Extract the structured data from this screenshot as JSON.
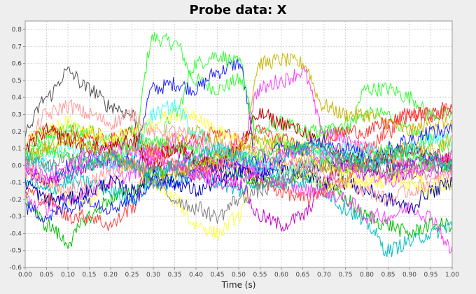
{
  "chart_data": {
    "type": "line",
    "title": "Probe data: X",
    "xlabel": "Time (s)",
    "ylabel": "",
    "xlim": [
      0,
      1
    ],
    "ylim": [
      -0.6,
      0.85
    ],
    "x_ticks": [
      "0.00",
      "0.05",
      "0.10",
      "0.15",
      "0.20",
      "0.25",
      "0.30",
      "0.35",
      "0.40",
      "0.45",
      "0.50",
      "0.55",
      "0.60",
      "0.65",
      "0.70",
      "0.75",
      "0.80",
      "0.85",
      "0.90",
      "0.95",
      "1.00"
    ],
    "y_ticks": [
      "0.8",
      "0.7",
      "0.6",
      "0.5",
      "0.4",
      "0.3",
      "0.2",
      "0.1",
      "0.0",
      "-0.1",
      "-0.2",
      "-0.3",
      "-0.4",
      "-0.5",
      "-0.6"
    ],
    "grid": true,
    "legend": "none",
    "x": [
      0,
      0.05,
      0.1,
      0.15,
      0.2,
      0.25,
      0.3,
      0.35,
      0.4,
      0.45,
      0.5,
      0.55,
      0.6,
      0.65,
      0.7,
      0.75,
      0.8,
      0.85,
      0.9,
      0.95,
      1.0
    ],
    "series": [
      {
        "color": "#32ff32",
        "values": [
          0.05,
          0.15,
          0.22,
          0.2,
          0.15,
          0.1,
          0.75,
          0.72,
          0.5,
          0.45,
          0.5,
          0.2,
          0.25,
          0.2,
          0.2,
          0.25,
          0.3,
          0.3,
          0.2,
          0.15,
          0.1
        ]
      },
      {
        "color": "#2020ff",
        "values": [
          0.0,
          -0.1,
          0.0,
          0.05,
          0.0,
          0.05,
          0.45,
          0.48,
          0.45,
          0.55,
          0.6,
          -0.05,
          0.0,
          -0.05,
          0.0,
          0.0,
          0.05,
          0.0,
          0.0,
          0.05,
          0.0
        ]
      },
      {
        "color": "#32ff32",
        "values": [
          0.1,
          0.2,
          0.2,
          0.15,
          0.1,
          0.2,
          0.1,
          0.3,
          0.6,
          0.65,
          0.6,
          0.1,
          0.15,
          0.1,
          0.2,
          0.2,
          0.45,
          0.45,
          0.4,
          0.3,
          0.3
        ]
      },
      {
        "color": "#c8b400",
        "values": [
          0.0,
          0.1,
          0.15,
          0.2,
          0.15,
          0.1,
          0.1,
          0.15,
          0.2,
          0.15,
          0.0,
          0.6,
          0.62,
          0.6,
          0.35,
          0.3,
          0.3,
          0.25,
          0.2,
          0.25,
          0.25
        ]
      },
      {
        "color": "#ff3cff",
        "values": [
          -0.05,
          -0.1,
          -0.05,
          0.0,
          0.0,
          0.0,
          0.1,
          0.15,
          0.1,
          0.05,
          0.1,
          0.45,
          0.5,
          0.55,
          0.2,
          0.15,
          0.1,
          0.05,
          0.0,
          -0.05,
          -0.05
        ]
      },
      {
        "color": "#505050",
        "values": [
          0.2,
          0.4,
          0.55,
          0.45,
          0.35,
          0.3,
          -0.1,
          -0.05,
          0.0,
          0.05,
          0.0,
          -0.1,
          -0.05,
          0.0,
          0.0,
          0.05,
          -0.05,
          0.0,
          -0.05,
          0.0,
          0.0
        ]
      },
      {
        "color": "#ff9a9a",
        "values": [
          0.1,
          0.3,
          0.35,
          0.3,
          0.25,
          0.3,
          0.2,
          0.2,
          0.15,
          0.1,
          0.1,
          0.05,
          0.0,
          0.0,
          0.05,
          0.1,
          0.1,
          0.05,
          0.0,
          0.0,
          0.05
        ]
      },
      {
        "color": "#ffff40",
        "values": [
          0.0,
          -0.1,
          -0.2,
          -0.2,
          -0.1,
          0.0,
          -0.1,
          -0.2,
          -0.35,
          -0.4,
          -0.3,
          0.1,
          0.15,
          0.1,
          0.0,
          -0.05,
          -0.1,
          -0.05,
          -0.1,
          -0.15,
          -0.1
        ]
      },
      {
        "color": "#c800c8",
        "values": [
          -0.05,
          -0.1,
          -0.05,
          0.0,
          0.05,
          0.0,
          0.05,
          0.1,
          0.0,
          -0.05,
          -0.1,
          -0.3,
          -0.35,
          -0.3,
          -0.1,
          0.0,
          0.0,
          -0.05,
          0.0,
          0.05,
          0.0
        ]
      },
      {
        "color": "#00c000",
        "values": [
          -0.2,
          -0.35,
          -0.45,
          -0.3,
          -0.2,
          -0.15,
          -0.05,
          0.0,
          0.05,
          0.0,
          -0.05,
          -0.1,
          -0.1,
          -0.05,
          -0.1,
          -0.2,
          -0.3,
          -0.35,
          -0.4,
          -0.35,
          -0.35
        ]
      },
      {
        "color": "#00c0c0",
        "values": [
          -0.1,
          -0.15,
          -0.1,
          -0.1,
          -0.15,
          -0.2,
          -0.1,
          -0.1,
          -0.05,
          -0.1,
          -0.15,
          -0.1,
          -0.1,
          -0.1,
          -0.15,
          -0.25,
          -0.35,
          -0.5,
          -0.45,
          -0.4,
          -0.35
        ]
      },
      {
        "color": "#ff3cff",
        "values": [
          -0.2,
          -0.25,
          -0.2,
          -0.15,
          -0.1,
          -0.05,
          0.0,
          0.0,
          0.05,
          0.0,
          0.0,
          -0.05,
          -0.1,
          -0.15,
          -0.15,
          -0.2,
          -0.3,
          -0.3,
          -0.25,
          -0.3,
          -0.5
        ]
      },
      {
        "color": "#ff4040",
        "values": [
          -0.15,
          -0.2,
          -0.3,
          -0.3,
          -0.35,
          -0.25,
          0.1,
          0.0,
          -0.05,
          0.0,
          0.05,
          -0.1,
          -0.15,
          -0.2,
          -0.15,
          -0.1,
          0.1,
          0.2,
          0.3,
          0.3,
          0.32
        ]
      },
      {
        "color": "#0000b4",
        "values": [
          -0.1,
          -0.2,
          -0.2,
          -0.15,
          -0.1,
          -0.15,
          -0.05,
          -0.1,
          -0.15,
          -0.1,
          -0.05,
          -0.05,
          0.0,
          -0.05,
          -0.1,
          -0.1,
          -0.15,
          -0.2,
          -0.25,
          -0.15,
          -0.1
        ]
      },
      {
        "color": "#ff3030",
        "values": [
          0.15,
          0.2,
          0.2,
          0.15,
          0.15,
          0.2,
          0.05,
          0.1,
          0.15,
          0.2,
          0.15,
          0.2,
          0.15,
          0.1,
          0.15,
          0.2,
          0.2,
          0.25,
          0.3,
          0.3,
          0.35
        ]
      },
      {
        "color": "#ffff40",
        "values": [
          0.15,
          0.2,
          0.25,
          0.2,
          0.15,
          0.2,
          0.25,
          0.3,
          0.3,
          0.2,
          0.15,
          0.05,
          0.0,
          -0.05,
          -0.1,
          -0.1,
          -0.1,
          -0.1,
          -0.05,
          -0.1,
          -0.1
        ]
      },
      {
        "color": "#40ffff",
        "values": [
          0.0,
          0.05,
          0.1,
          0.05,
          0.0,
          0.05,
          0.3,
          0.35,
          0.2,
          0.1,
          0.05,
          0.0,
          -0.05,
          0.0,
          0.05,
          0.1,
          0.1,
          0.05,
          0.1,
          0.15,
          0.15
        ]
      },
      {
        "color": "#c00000",
        "values": [
          0.1,
          0.2,
          0.15,
          0.1,
          0.1,
          0.15,
          0.0,
          0.1,
          0.05,
          0.0,
          0.1,
          0.3,
          0.25,
          0.2,
          0.1,
          0.05,
          0.0,
          0.05,
          0.1,
          0.05,
          0.05
        ]
      },
      {
        "color": "#2020ff",
        "values": [
          -0.25,
          -0.3,
          -0.25,
          -0.2,
          -0.25,
          -0.2,
          -0.1,
          -0.1,
          -0.05,
          0.0,
          0.0,
          0.05,
          0.1,
          0.1,
          0.15,
          0.1,
          0.05,
          0.1,
          0.15,
          0.2,
          0.2
        ]
      },
      {
        "color": "#808080",
        "values": [
          0.05,
          0.0,
          0.05,
          0.1,
          0.05,
          0.0,
          -0.1,
          -0.2,
          -0.25,
          -0.3,
          -0.2,
          -0.15,
          -0.1,
          -0.05,
          0.0,
          0.05,
          0.0,
          -0.05,
          0.0,
          0.05,
          0.0
        ]
      },
      {
        "color": "#32ff32",
        "values": [
          0.05,
          0.1,
          0.05,
          0.0,
          0.05,
          0.1,
          0.15,
          0.1,
          0.1,
          0.05,
          0.05,
          0.05,
          0.1,
          0.1,
          0.05,
          0.0,
          0.05,
          0.1,
          0.05,
          0.0,
          0.0
        ]
      },
      {
        "color": "#ff9a9a",
        "values": [
          -0.05,
          -0.1,
          -0.15,
          -0.1,
          -0.05,
          0.0,
          0.05,
          0.0,
          -0.05,
          0.0,
          0.05,
          0.1,
          0.05,
          0.0,
          -0.05,
          -0.1,
          -0.15,
          -0.2,
          -0.15,
          -0.1,
          -0.05
        ]
      },
      {
        "color": "#c8b400",
        "values": [
          0.05,
          0.1,
          0.15,
          0.1,
          0.05,
          0.0,
          -0.05,
          -0.05,
          0.0,
          0.05,
          0.1,
          0.15,
          0.1,
          0.05,
          0.0,
          -0.05,
          0.0,
          0.05,
          0.1,
          0.1,
          0.15
        ]
      },
      {
        "color": "#ff3cff",
        "values": [
          0.0,
          -0.05,
          0.0,
          0.05,
          0.1,
          0.1,
          0.05,
          0.0,
          -0.05,
          -0.1,
          -0.1,
          0.0,
          0.05,
          0.1,
          0.05,
          0.0,
          -0.05,
          -0.1,
          -0.05,
          0.0,
          0.05
        ]
      },
      {
        "color": "#00c0c0",
        "values": [
          0.05,
          0.0,
          -0.05,
          0.0,
          0.05,
          0.0,
          -0.05,
          0.0,
          0.05,
          0.1,
          0.05,
          0.0,
          0.05,
          0.1,
          0.1,
          0.05,
          0.0,
          0.05,
          0.1,
          0.05,
          0.0
        ]
      }
    ]
  }
}
